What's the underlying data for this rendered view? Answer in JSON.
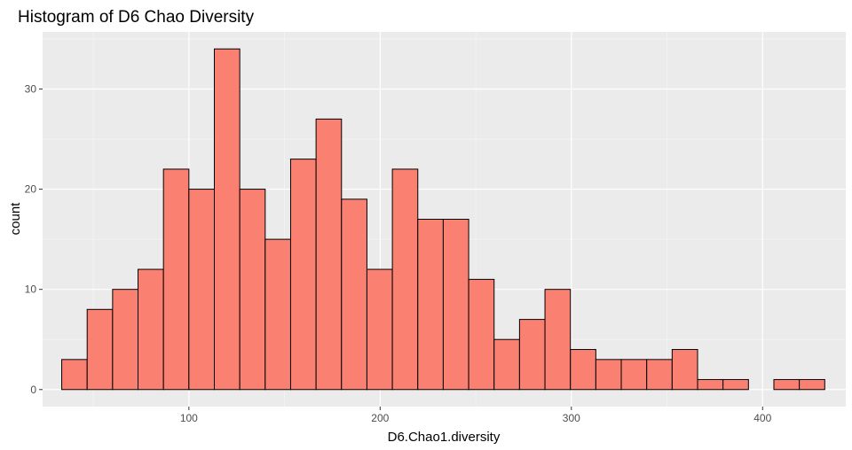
{
  "chart_data": {
    "type": "bar",
    "title": "Histogram of D6 Chao Diversity",
    "xlabel": "D6.Chao1.diversity",
    "ylabel": "count",
    "xlim": [
      23.5,
      443.5
    ],
    "ylim": [
      -1.7,
      35.7
    ],
    "x_ticks": [
      100,
      200,
      300,
      400
    ],
    "y_ticks": [
      0,
      10,
      20,
      30
    ],
    "bin_width": 13.3,
    "bin_start": 33.5,
    "values": [
      3,
      8,
      10,
      12,
      22,
      20,
      34,
      20,
      15,
      23,
      27,
      19,
      12,
      22,
      17,
      17,
      11,
      5,
      7,
      10,
      4,
      3,
      3,
      3,
      4,
      1,
      1,
      0,
      1,
      1
    ],
    "fill_color": "#fa8072",
    "outline_color": "#000000",
    "panel_color": "#ebebeb",
    "grid": true
  }
}
